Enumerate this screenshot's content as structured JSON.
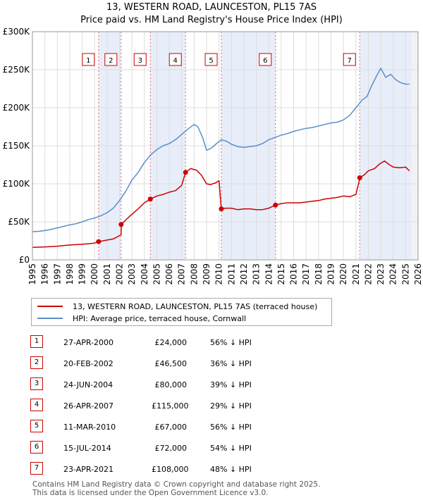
{
  "title": "13, WESTERN ROAD, LAUNCESTON, PL15 7AS",
  "subtitle": "Price paid vs. HM Land Registry's House Price Index (HPI)",
  "chart_data": {
    "type": "line",
    "title": "13, WESTERN ROAD, LAUNCESTON, PL15 7AS",
    "subtitle": "Price paid vs. HM Land Registry's House Price Index (HPI)",
    "xlabel": "",
    "ylabel": "",
    "xlim": [
      1995,
      2026
    ],
    "ylim": [
      0,
      300000
    ],
    "x_ticks": [
      1995,
      1996,
      1997,
      1998,
      1999,
      2000,
      2001,
      2002,
      2003,
      2004,
      2005,
      2006,
      2007,
      2008,
      2009,
      2010,
      2011,
      2012,
      2013,
      2014,
      2015,
      2016,
      2017,
      2018,
      2019,
      2020,
      2021,
      2022,
      2023,
      2024,
      2025,
      2026
    ],
    "y_ticks": [
      {
        "value": 0,
        "label": "£0"
      },
      {
        "value": 50000,
        "label": "£50K"
      },
      {
        "value": 100000,
        "label": "£100K"
      },
      {
        "value": 150000,
        "label": "£150K"
      },
      {
        "value": 200000,
        "label": "£200K"
      },
      {
        "value": 250000,
        "label": "£250K"
      },
      {
        "value": 300000,
        "label": "£300K"
      }
    ],
    "grid": true,
    "series": [
      {
        "name": "13, WESTERN ROAD, LAUNCESTON, PL15 7AS (terraced house)",
        "color": "#cc0000",
        "x": [
          1995.0,
          1996.0,
          1997.0,
          1998.0,
          1999.0,
          2000.0,
          2000.32,
          2000.33,
          2001.0,
          2001.5,
          2002.13,
          2002.14,
          2002.6,
          2003.0,
          2003.5,
          2004.0,
          2004.48,
          2004.49,
          2005.0,
          2005.5,
          2006.0,
          2006.5,
          2007.0,
          2007.31,
          2007.32,
          2007.7,
          2008.2,
          2008.6,
          2009.0,
          2009.3,
          2009.7,
          2010.0,
          2010.18,
          2010.2,
          2010.5,
          2011.0,
          2011.5,
          2012.0,
          2012.5,
          2013.0,
          2013.5,
          2014.0,
          2014.53,
          2014.55,
          2015.0,
          2015.5,
          2016.0,
          2016.5,
          2017.0,
          2017.5,
          2018.0,
          2018.5,
          2019.0,
          2019.5,
          2020.0,
          2020.5,
          2021.0,
          2021.3,
          2021.32,
          2021.7,
          2022.0,
          2022.5,
          2022.9,
          2023.3,
          2023.7,
          2024.0,
          2024.5,
          2025.0,
          2025.3
        ],
        "values": [
          16500,
          17000,
          18000,
          19500,
          20500,
          22000,
          24000,
          24000,
          26000,
          27500,
          33000,
          46500,
          54000,
          60000,
          67000,
          75000,
          80000,
          80000,
          84000,
          86000,
          89000,
          91000,
          98000,
          115000,
          115000,
          120000,
          118000,
          111000,
          100000,
          99000,
          101000,
          104000,
          67000,
          67000,
          68000,
          68000,
          66000,
          67000,
          67000,
          66000,
          66000,
          68000,
          72000,
          72000,
          74000,
          75000,
          75000,
          75000,
          76000,
          77000,
          78000,
          80000,
          81000,
          82000,
          84000,
          83000,
          86000,
          106000,
          108000,
          112000,
          117000,
          120000,
          126000,
          130000,
          125000,
          122000,
          121000,
          122000,
          117000
        ]
      },
      {
        "name": "HPI: Average price, terraced house, Cornwall",
        "color": "#5b8ec9",
        "x": [
          1995.0,
          1995.5,
          1996.0,
          1996.5,
          1997.0,
          1997.5,
          1998.0,
          1998.5,
          1999.0,
          1999.5,
          2000.0,
          2000.5,
          2001.0,
          2001.5,
          2002.0,
          2002.5,
          2003.0,
          2003.5,
          2004.0,
          2004.5,
          2005.0,
          2005.5,
          2006.0,
          2006.5,
          2007.0,
          2007.5,
          2008.0,
          2008.3,
          2008.7,
          2009.0,
          2009.4,
          2009.8,
          2010.2,
          2010.6,
          2011.0,
          2011.5,
          2012.0,
          2012.5,
          2013.0,
          2013.5,
          2014.0,
          2014.5,
          2015.0,
          2015.5,
          2016.0,
          2016.5,
          2017.0,
          2017.5,
          2018.0,
          2018.5,
          2019.0,
          2019.5,
          2020.0,
          2020.5,
          2021.0,
          2021.5,
          2021.9,
          2022.3,
          2022.7,
          2023.0,
          2023.4,
          2023.8,
          2024.2,
          2024.6,
          2025.0,
          2025.3
        ],
        "values": [
          37000,
          37500,
          38500,
          40000,
          42000,
          44000,
          46000,
          47500,
          50000,
          53000,
          55000,
          58000,
          62000,
          68000,
          78000,
          90000,
          105000,
          115000,
          128000,
          138000,
          145000,
          150000,
          153000,
          158000,
          165000,
          172000,
          178000,
          175000,
          160000,
          144000,
          147000,
          153000,
          158000,
          156000,
          152000,
          149000,
          148000,
          149000,
          150000,
          153000,
          158000,
          161000,
          164000,
          166000,
          169000,
          171000,
          173000,
          174000,
          176000,
          178000,
          180000,
          181000,
          184000,
          190000,
          200000,
          210000,
          215000,
          230000,
          243000,
          252000,
          240000,
          244000,
          237000,
          233000,
          231000,
          231000
        ]
      }
    ],
    "sale_markers": [
      {
        "id": "1",
        "x": 2000.32,
        "value": 24000
      },
      {
        "id": "2",
        "x": 2002.13,
        "value": 46500
      },
      {
        "id": "3",
        "x": 2004.48,
        "value": 80000
      },
      {
        "id": "4",
        "x": 2007.31,
        "value": 115000
      },
      {
        "id": "5",
        "x": 2010.19,
        "value": 67000
      },
      {
        "id": "6",
        "x": 2014.54,
        "value": 72000
      },
      {
        "id": "7",
        "x": 2021.31,
        "value": 108000
      }
    ],
    "shaded_spans": [
      [
        2000.32,
        2002.13
      ],
      [
        2004.48,
        2007.31
      ],
      [
        2010.19,
        2014.54
      ],
      [
        2021.31,
        2025.5
      ]
    ]
  },
  "legend": {
    "items": [
      {
        "label": "13, WESTERN ROAD, LAUNCESTON, PL15 7AS (terraced house)",
        "color": "#cc0000"
      },
      {
        "label": "HPI: Average price, terraced house, Cornwall",
        "color": "#5b8ec9"
      }
    ]
  },
  "sales": [
    {
      "num": "1",
      "date": "27-APR-2000",
      "price": "£24,000",
      "delta": "56% ↓ HPI"
    },
    {
      "num": "2",
      "date": "20-FEB-2002",
      "price": "£46,500",
      "delta": "36% ↓ HPI"
    },
    {
      "num": "3",
      "date": "24-JUN-2004",
      "price": "£80,000",
      "delta": "39% ↓ HPI"
    },
    {
      "num": "4",
      "date": "26-APR-2007",
      "price": "£115,000",
      "delta": "29% ↓ HPI"
    },
    {
      "num": "5",
      "date": "11-MAR-2010",
      "price": "£67,000",
      "delta": "56% ↓ HPI"
    },
    {
      "num": "6",
      "date": "15-JUL-2014",
      "price": "£72,000",
      "delta": "54% ↓ HPI"
    },
    {
      "num": "7",
      "date": "23-APR-2021",
      "price": "£108,000",
      "delta": "48% ↓ HPI"
    }
  ],
  "footer": {
    "line1": "Contains HM Land Registry data © Crown copyright and database right 2025.",
    "line2": "This data is licensed under the Open Government Licence v3.0."
  }
}
